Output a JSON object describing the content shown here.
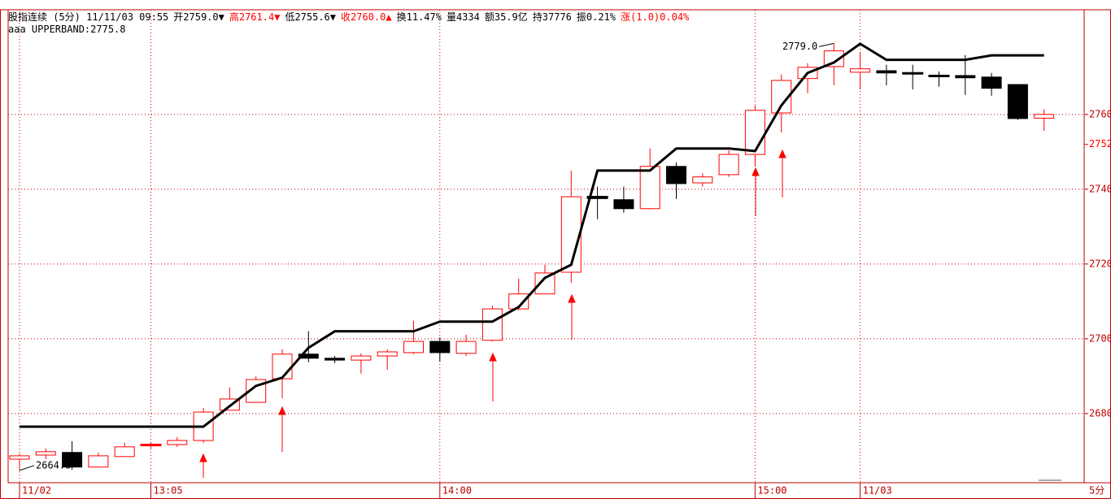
{
  "header": [
    {
      "text": "股指连续 (5分) 11/11/03 09:55",
      "color": "#000000"
    },
    {
      "text": "开2759.0▼",
      "color": "#000000"
    },
    {
      "text": "高2761.4▼",
      "color": "#ff0000"
    },
    {
      "text": "低2755.6▼",
      "color": "#000000"
    },
    {
      "text": "收2760.0▲",
      "color": "#ff0000"
    },
    {
      "text": "换11.47%",
      "color": "#000000"
    },
    {
      "text": "量4334",
      "color": "#000000"
    },
    {
      "text": "额35.9亿",
      "color": "#000000"
    },
    {
      "text": "持37776",
      "color": "#000000"
    },
    {
      "text": "振0.21%",
      "color": "#000000"
    },
    {
      "text": "涨(1.0)0.04%",
      "color": "#ff0000"
    }
  ],
  "chart_data": {
    "type": "candlestick",
    "indicator_label": "aaa UPPERBAND:2775.8",
    "period_label": "5分",
    "categories": [
      "11/02",
      null,
      null,
      null,
      null,
      "13:05",
      null,
      null,
      null,
      null,
      null,
      null,
      null,
      null,
      null,
      null,
      "14:00",
      null,
      null,
      null,
      null,
      null,
      null,
      null,
      null,
      null,
      null,
      null,
      "15:00",
      null,
      null,
      null,
      "11/03",
      null,
      null,
      null,
      null,
      null,
      null,
      null
    ],
    "open": [
      2667.8,
      2668.9,
      2669.6,
      2665.7,
      2668.5,
      2671.5,
      2671.7,
      2672.8,
      2680.9,
      2683.0,
      2689.3,
      2695.9,
      2694.8,
      2694.3,
      2695.4,
      2696.3,
      2699.3,
      2696.1,
      2699.6,
      2708.0,
      2712.0,
      2717.8,
      2738.0,
      2737.2,
      2734.8,
      2746.1,
      2741.7,
      2743.9,
      2749.3,
      2760.4,
      2769.6,
      2772.8,
      2771.3,
      2771.7,
      2771.1,
      2770.4,
      2770.4,
      2770.0,
      2768.0,
      2759.0
    ],
    "high": [
      2669.3,
      2670.7,
      2672.6,
      2669.6,
      2672.2,
      2672.4,
      2673.7,
      2681.5,
      2687.0,
      2690.0,
      2697.2,
      2702.0,
      2695.4,
      2696.1,
      2697.2,
      2704.8,
      2700.4,
      2701.1,
      2708.9,
      2716.1,
      2719.8,
      2745.0,
      2740.7,
      2740.7,
      2750.9,
      2747.2,
      2744.3,
      2750.4,
      2762.4,
      2770.7,
      2773.7,
      2779.0,
      2776.5,
      2773.3,
      2773.3,
      2771.5,
      2775.9,
      2771.1,
      2768.0,
      2761.4
    ],
    "low": [
      2664.8,
      2667.8,
      2665.0,
      2665.7,
      2668.5,
      2670.7,
      2671.1,
      2672.2,
      2680.9,
      2683.0,
      2684.1,
      2693.7,
      2693.5,
      2690.7,
      2691.7,
      2695.9,
      2693.9,
      2695.4,
      2699.3,
      2707.6,
      2712.0,
      2715.0,
      2732.0,
      2733.7,
      2734.6,
      2737.4,
      2740.7,
      2743.3,
      2746.1,
      2755.2,
      2765.7,
      2767.8,
      2766.7,
      2767.8,
      2766.7,
      2767.4,
      2765.2,
      2765.0,
      2758.5,
      2755.6
    ],
    "close": [
      2668.7,
      2669.8,
      2665.7,
      2668.7,
      2671.1,
      2671.7,
      2672.8,
      2680.4,
      2683.9,
      2689.1,
      2695.9,
      2694.8,
      2694.3,
      2695.4,
      2696.5,
      2699.3,
      2696.3,
      2699.3,
      2708.0,
      2712.0,
      2717.6,
      2738.0,
      2737.6,
      2734.8,
      2746.1,
      2741.5,
      2743.3,
      2749.3,
      2761.1,
      2769.1,
      2772.6,
      2777.0,
      2772.2,
      2771.1,
      2770.9,
      2770.2,
      2769.8,
      2767.0,
      2758.9,
      2760.0
    ],
    "up_color": "#ff0000",
    "down_color": "#000000",
    "upperband": {
      "color": "#000000",
      "values": [
        2676.5,
        2676.5,
        2676.5,
        2676.5,
        2676.5,
        2676.5,
        2676.5,
        2676.5,
        2682.0,
        2687.4,
        2689.6,
        2697.6,
        2702.0,
        2702.0,
        2702.0,
        2702.0,
        2704.6,
        2704.6,
        2704.6,
        2708.5,
        2716.3,
        2719.8,
        2745.0,
        2745.0,
        2745.0,
        2750.9,
        2750.9,
        2750.9,
        2750.2,
        2762.4,
        2771.1,
        2773.9,
        2778.9,
        2774.6,
        2774.6,
        2774.6,
        2774.6,
        2775.8,
        2775.8,
        2775.8
      ]
    },
    "max_label": {
      "value": 2779.0,
      "label": "2779.0"
    },
    "min_label": {
      "value": 2664.8,
      "label": "2664.8"
    },
    "price_marker": 2752,
    "ylim": [
      2661.5,
      2788
    ],
    "yticks": [
      2680,
      2700,
      2720,
      2740,
      2760
    ],
    "grid": true
  }
}
